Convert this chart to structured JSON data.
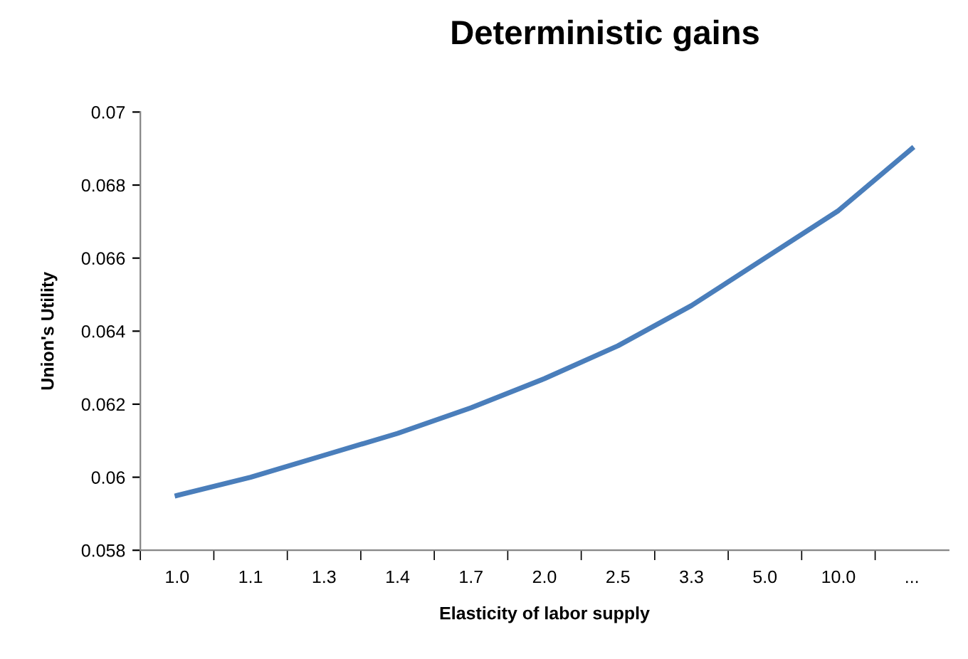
{
  "chart_data": {
    "type": "line",
    "title": "Deterministic gains",
    "xlabel": "Elasticity of labor supply",
    "ylabel": "Union's Utility",
    "categories": [
      "1.0",
      "1.1",
      "1.3",
      "1.4",
      "1.7",
      "2.0",
      "2.5",
      "3.3",
      "5.0",
      "10.0",
      "..."
    ],
    "series": [
      {
        "color": "#4a7ebb",
        "values": [
          0.0595,
          0.06,
          0.0606,
          0.0612,
          0.0619,
          0.0627,
          0.0636,
          0.0647,
          0.066,
          0.0673,
          0.069
        ]
      }
    ],
    "ylim": [
      0.058,
      0.07
    ],
    "yticks": [
      0.058,
      0.06,
      0.062,
      0.064,
      0.066,
      0.068,
      0.07
    ],
    "grid": false,
    "legend": false,
    "marker": "none",
    "line_style": "solid"
  }
}
